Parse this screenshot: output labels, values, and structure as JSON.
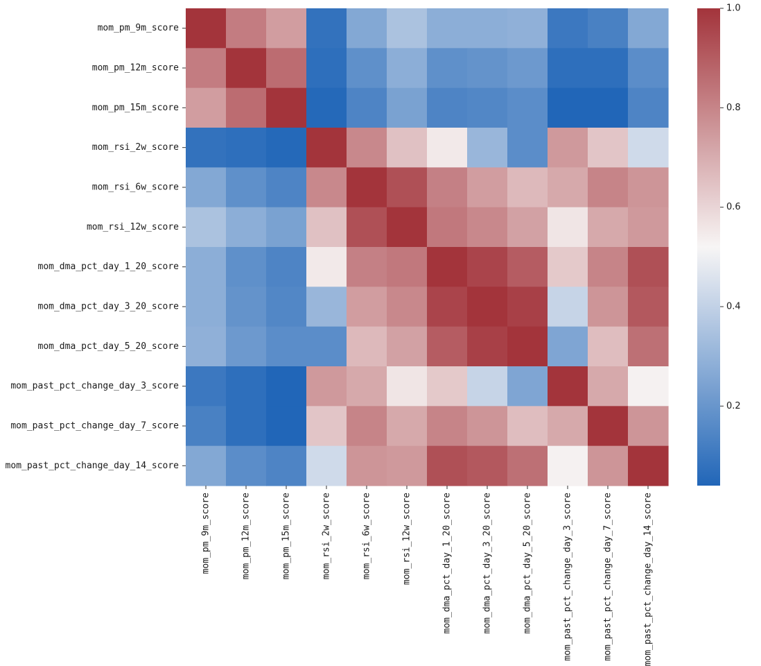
{
  "chart_data": {
    "type": "heatmap",
    "title": "",
    "xlabel": "",
    "ylabel": "",
    "labels": [
      "mom_pm_9m_score",
      "mom_pm_12m_score",
      "mom_pm_15m_score",
      "mom_rsi_2w_score",
      "mom_rsi_6w_score",
      "mom_rsi_12w_score",
      "mom_dma_pct_day_1_20_score",
      "mom_dma_pct_day_3_20_score",
      "mom_dma_pct_day_5_20_score",
      "mom_past_pct_change_day_3_score",
      "mom_past_pct_change_day_7_score",
      "mom_past_pct_change_day_14_score"
    ],
    "matrix": [
      [
        1.0,
        0.82,
        0.74,
        0.08,
        0.26,
        0.35,
        0.28,
        0.28,
        0.29,
        0.1,
        0.13,
        0.26
      ],
      [
        0.82,
        1.0,
        0.86,
        0.07,
        0.18,
        0.28,
        0.18,
        0.19,
        0.21,
        0.07,
        0.07,
        0.17
      ],
      [
        0.74,
        0.86,
        1.0,
        0.05,
        0.14,
        0.24,
        0.14,
        0.15,
        0.17,
        0.03,
        0.03,
        0.14
      ],
      [
        0.08,
        0.07,
        0.05,
        1.0,
        0.79,
        0.65,
        0.55,
        0.31,
        0.17,
        0.75,
        0.64,
        0.43
      ],
      [
        0.26,
        0.18,
        0.14,
        0.79,
        1.0,
        0.93,
        0.81,
        0.74,
        0.67,
        0.71,
        0.8,
        0.76
      ],
      [
        0.35,
        0.28,
        0.24,
        0.65,
        0.93,
        1.0,
        0.83,
        0.79,
        0.73,
        0.56,
        0.71,
        0.75
      ],
      [
        0.28,
        0.18,
        0.14,
        0.55,
        0.81,
        0.83,
        1.0,
        0.96,
        0.9,
        0.63,
        0.8,
        0.93
      ],
      [
        0.28,
        0.19,
        0.15,
        0.31,
        0.74,
        0.79,
        0.96,
        1.0,
        0.97,
        0.41,
        0.76,
        0.91
      ],
      [
        0.29,
        0.21,
        0.17,
        0.17,
        0.67,
        0.73,
        0.9,
        0.97,
        1.0,
        0.25,
        0.66,
        0.85
      ],
      [
        0.1,
        0.07,
        0.03,
        0.75,
        0.71,
        0.56,
        0.63,
        0.41,
        0.25,
        1.0,
        0.71,
        0.53
      ],
      [
        0.13,
        0.07,
        0.03,
        0.64,
        0.8,
        0.71,
        0.8,
        0.76,
        0.66,
        0.71,
        1.0,
        0.76
      ],
      [
        0.26,
        0.17,
        0.14,
        0.43,
        0.76,
        0.75,
        0.93,
        0.91,
        0.85,
        0.53,
        0.76,
        1.0
      ]
    ],
    "colormap": [
      "#2166b8",
      "#f7f5f5",
      "#a3343b"
    ],
    "colorbar": {
      "min": 0.04,
      "max": 1.0,
      "ticks": [
        0.2,
        0.4,
        0.6,
        0.8,
        1.0
      ],
      "tick_labels": [
        "0.2",
        "0.4",
        "0.6",
        "0.8",
        "1.0"
      ]
    },
    "grid": false,
    "legend": "colorbar-right"
  }
}
